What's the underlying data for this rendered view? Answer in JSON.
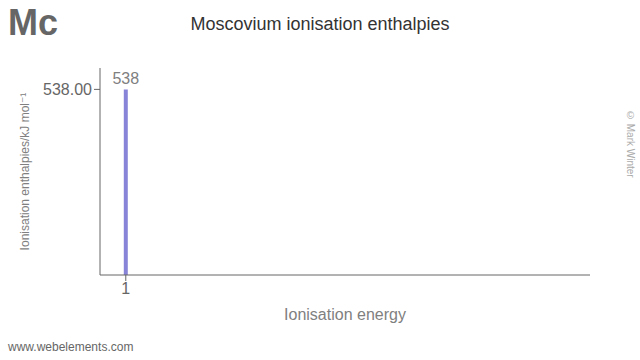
{
  "chart_data": {
    "type": "bar",
    "title": "Moscovium ionisation enthalpies",
    "x_label": "Ionisation energy",
    "y_label": "Ionisation enthalpies/kJ mol⁻¹",
    "x": [
      1
    ],
    "values": [
      538
    ],
    "xlim": [
      0.5,
      10
    ],
    "xticks": [
      1
    ],
    "ylim": [
      0,
      600
    ],
    "yticks": [
      {
        "value": 538,
        "label": "538.00"
      }
    ],
    "data_labels": true,
    "color": "#8884d8",
    "annotations": [
      "Mc",
      "© Mark Winter",
      "www.webelements.com"
    ]
  }
}
